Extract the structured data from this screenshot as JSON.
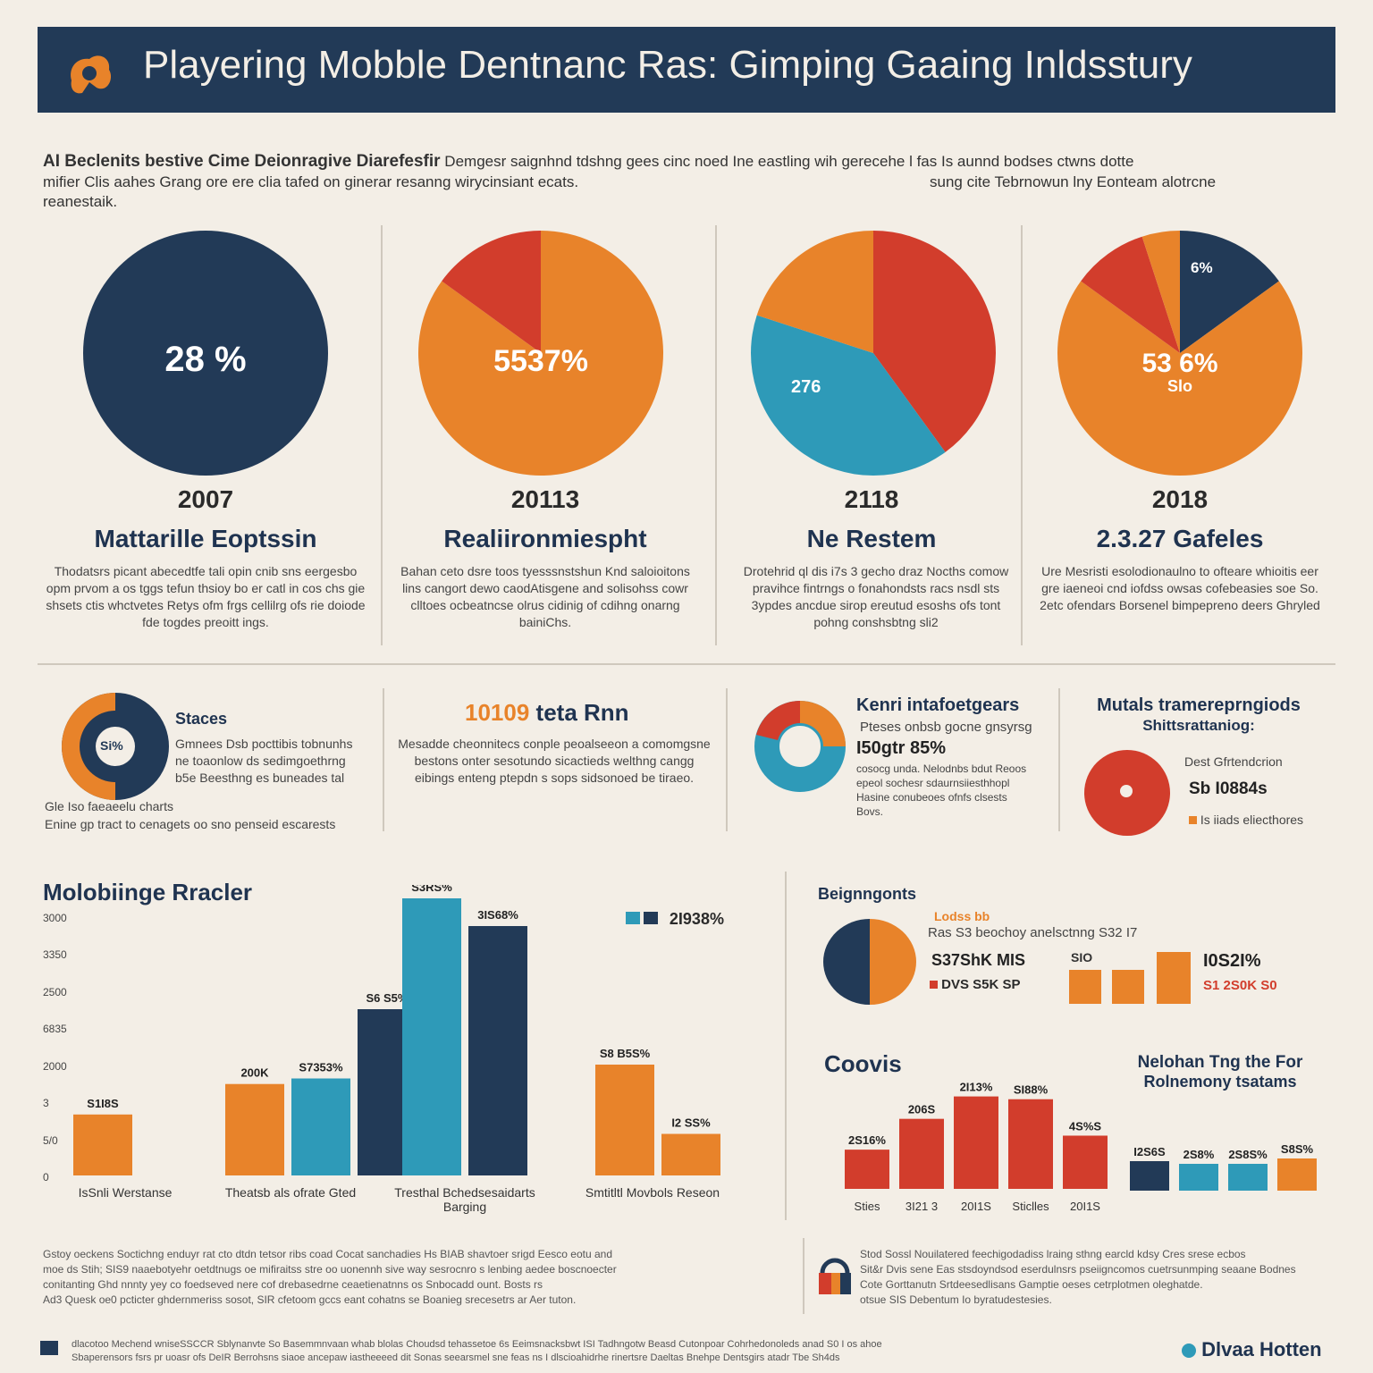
{
  "header": {
    "title": "Playering Mobble Dentnanc Ras: Gimping Gaaing Inldsstury"
  },
  "intro": {
    "lead": "AI Beclenits bestive Cime Deionragive Diarefesfir",
    "line1": "Demgesr saignhnd tdshng gees cinc noed  Ine  eastling wih gerecehe l fas Is aunnd bodses ctwns dotte",
    "line2": "mifier Clis aahes Grang ore ere clia tafed on ginerar resanng wirycinsiant ecats.",
    "line2b": "sung cite Tebrnowun lny Eonteam alotrcne",
    "line3": "reanestaik."
  },
  "colors": {
    "navy": "#223a57",
    "orange": "#e8832a",
    "red": "#d23d2c",
    "blue": "#2e9ab8",
    "bg": "#f3eee6"
  },
  "panels": [
    {
      "year": "2007",
      "title": "Mattarille Eoptssin",
      "pie_label": "28 %",
      "slices": [
        {
          "value": 100,
          "color": "#223a57"
        }
      ],
      "text": "Thodatsrs picant abecedtfe tali opin cnib sns eergesbo opm prvom a os tggs tefun thsioy bo er catl in cos chs  gie shsets ctis  whctvetes Retys ofm frgs  cellilrg ofs rie doiode fde togdes    preoitt ings."
    },
    {
      "year": "20113",
      "title": "Realiironmiespht",
      "pie_label": "5537%",
      "slices": [
        {
          "value": 85,
          "color": "#e8832a"
        },
        {
          "value": 15,
          "color": "#d23d2c"
        }
      ],
      "text": "Bahan ceto dsre toos tyesssnstshun Knd saloioitons lins cangort dewo caodAtisgene and solisohss cowr  clltoes ocbeatncse olrus cidinig of cdihng  onarng bainiChs."
    },
    {
      "year": "2118",
      "title": "Ne Restem",
      "pie_label": "276",
      "slices": [
        {
          "value": 40,
          "color": "#d23d2c"
        },
        {
          "value": 40,
          "color": "#2e9ab8"
        },
        {
          "value": 20,
          "color": "#e8832a"
        }
      ],
      "text": "Drotehrid ql dis i7s  3 gecho draz Nocths comow pravihce fintrngs o fonahondsts racs nsdl sts 3ypdes ancdue sirop ereutud esoshs ofs tont pohng conshsbtng sli2"
    },
    {
      "year": "2018",
      "title": "2.3.27 Gafeles",
      "pie_label": "53 6%",
      "pie_sub": "Slo",
      "pie_small": "6%",
      "slices": [
        {
          "value": 15,
          "color": "#223a57"
        },
        {
          "value": 70,
          "color": "#e8832a"
        },
        {
          "value": 10,
          "color": "#d23d2c"
        },
        {
          "value": 5,
          "color": "#e8832a"
        }
      ],
      "text": "Ure Mesristi esolodionaulno to ofteare whioitis eer gre  iaeneoi cnd iofdss owsas cofebeasies soe So. 2etc ofendars Borsenel bimpepreno deers Ghryled"
    }
  ],
  "mid": {
    "c1_label": "Staces",
    "c1_center": "Si%",
    "c1_text": "Gmnees Dsb pocttibis tobnunhs ne toaonlow ds sedimgoethrng b5e Beesthng es buneades tal",
    "c1_note": "Gle  Iso faeaeelu charts",
    "c1_note2": "Enine gp tract to cenagets oo sno penseid escarests",
    "c2_title_num": "10109",
    "c2_title": "teta Rnn",
    "c2_text": "Mesadde cheonnitecs conple  peoalseeon a comomgsne bestons onter sesotundo sicactieds welthng cangg eibings enteng ptepdn s sops sidsonoed be tiraeo.",
    "c3_title": "Kenri  intafoetgears",
    "c3_sub": "Pteses onbsb gocne gnsyrsg",
    "c3_value": "I50gtr 85%",
    "c3_text": "cosocg unda. Nelodnbs bdut Reoos epeol sochesr sdaurnsiiesthhopl Hasine conubeoes ofnfs clsests Bovs.",
    "c4_title": "Mutals tramereprngiods",
    "c4_title2": "Shittsrattaniog:",
    "c4_line1": "Dest Gfrtendcrion",
    "c4_value": "Sb  I0884s",
    "c4_line3": "Is iiads  eliecthores"
  },
  "chart_data": [
    {
      "type": "bar",
      "title": "Molobiinge Rracler",
      "yticks": [
        "0",
        "5/0",
        "3",
        "2000",
        "6835",
        "2500",
        "3350",
        "3000"
      ],
      "categories": [
        "IsSnli Werstanse",
        "Theatsb als ofrate Gted",
        "Tresthal Bchedsesaidarts Barging",
        "Smtitltl Movbols Reseon"
      ],
      "series": [
        {
          "color": "#e8832a",
          "values": [
            22,
            33,
            null,
            40
          ]
        },
        {
          "color": "#2e9ab8",
          "values": [
            null,
            35,
            100,
            null
          ]
        },
        {
          "color": "#223a57",
          "values": [
            null,
            60,
            90,
            null
          ]
        },
        {
          "color": "#e8832a",
          "values": [
            null,
            null,
            null,
            15
          ]
        }
      ],
      "bar_labels": [
        "S1I8S",
        "200K",
        "S7353%",
        "S6 S5%",
        "S3RS%",
        "3IS68%",
        "S8 B5S%",
        "I2 SS%"
      ],
      "legend_value": "2I938%"
    },
    {
      "type": "bar",
      "title": "Coovis",
      "categories": [
        "Sties",
        "3I21 3",
        "20I1S",
        "Sticlles",
        "20I1S"
      ],
      "values": [
        14,
        25,
        33,
        32,
        19
      ],
      "bar_labels": [
        "2S16%",
        "206S",
        "2I13%",
        "SI88%",
        "4S%S"
      ],
      "color": "#d23d2c"
    },
    {
      "type": "bar",
      "title": "Nelohan Tng  the  For",
      "subtitle": "Rolnemony tsatams",
      "values": [
        11,
        10,
        10,
        12
      ],
      "colors": [
        "#223a57",
        "#2e9ab8",
        "#2e9ab8",
        "#e8832a"
      ],
      "bar_labels": [
        "I2S6S",
        "2S8%",
        "2S8S%",
        "S8S%"
      ]
    }
  ],
  "right": {
    "title": "Beignngonts",
    "sub1": "Lodss bb",
    "sub2": "Ras S3  beochoy anelsctnng  S32 I7",
    "val1": "S37ShK MIS",
    "val2": "DVS  S5K SP",
    "bars_value": "SIO",
    "big_value": "I0S2I%",
    "big_sub": "S1  2S0K S0"
  },
  "footer": {
    "p1": "Gstoy oeckens Soctichng enduyr  rat cto dtdn tetsor ribs coad Cocat sanchadies Hs BIAB shavtoer srigd Eesco eotu and",
    "p2": "moe ds Stih; SIS9 naaebotyehr  oetdtnugs  oe  mifiraitss  stre  oo uonennh sive way sesrocnro s lenbing aedee boscnoecter",
    "p3": "conitanting Ghd nnnty  yey co foedseved nere cof  drebasedrne ceaetienatnns  os  Snbocadd ount. Bosts rs",
    "p4": "Ad3 Quesk oe0 pcticter ghdernmeriss sosot, SIR  cfetoom gccs eant cohatns  se Boanieg  srecesetrs  ar Aer tuton.",
    "r1": "Stod Sossl Nouilatered feechigodadiss lraing sthng earcld kdsy Cres srese ecbos",
    "r2": "Sit&r Dvis  sene Eas stsdoyndsod eserdulnsrs pseiigncomos  cuetrsunmping seaane Bodnes",
    "r3": "Cote  Gorttanutn  Srtdeesedlisans Gamptie oeses cetrplotmen oleghatde.",
    "r4": "otsue SIS  Debentum  Io byratudestesies.",
    "f1": "dlacotoo Mechend wniseSSCCR Sblynanvte So Basemmnvaan whab blolas Choudsd tehassetoe 6s Eeimsnacksbwt ISI Tadhngotw Beasd Cutonpoar Cohrhedonoleds anad S0 I os ahoe",
    "f2": "Sbaperensors fsrs pr uoasr ofs DeIR Berrohsns siaoe ancepaw iastheeeed dit Sonas seearsmel sne feas ns I dlscioahidrhe rinertsre Daeltas Bnehpe Dentsgirs atadr Tbe Sh4ds",
    "brand": "Dlvaa Hotten"
  }
}
